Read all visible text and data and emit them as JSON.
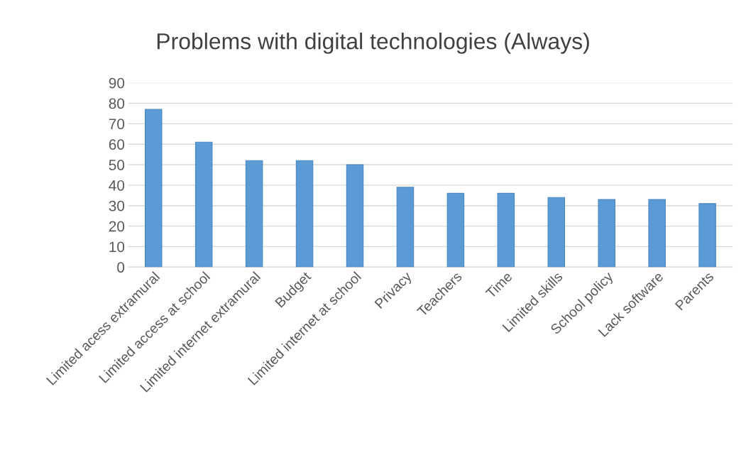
{
  "chart_data": {
    "type": "bar",
    "title": "Problems with digital technologies (Always)",
    "categories": [
      "Limited acess extramural",
      "Limited access at school",
      "Limited internet extramural",
      "Budget",
      "Limited internet at school",
      "Privacy",
      "Teachers",
      "Time",
      "Limited skills",
      "School policy",
      "Lack software",
      "Parents"
    ],
    "values": [
      77,
      61,
      52,
      52,
      50,
      39,
      36,
      36,
      34,
      33,
      33,
      31
    ],
    "color": "#5b9bd5",
    "ylim": [
      0,
      90
    ],
    "yticks": [
      0,
      10,
      20,
      30,
      40,
      50,
      60,
      70,
      80,
      90
    ],
    "grid": "y"
  }
}
